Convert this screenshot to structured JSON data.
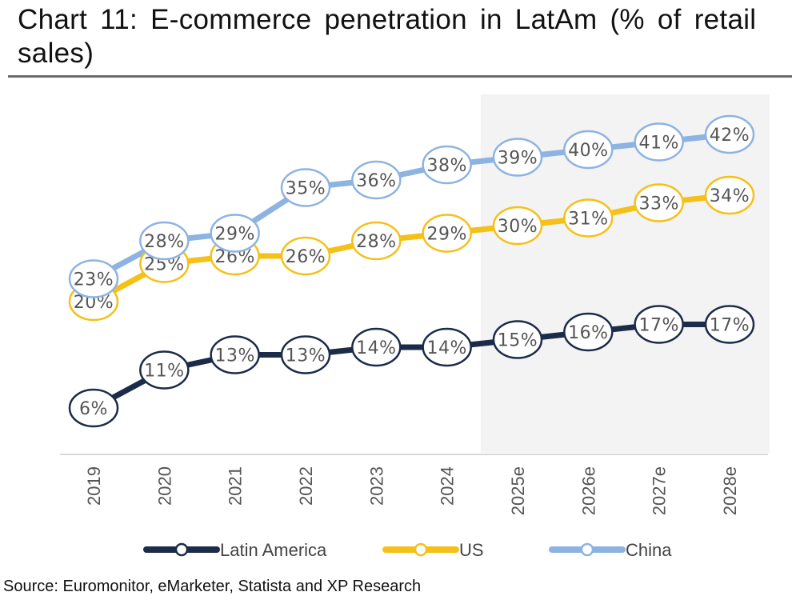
{
  "chart_data": {
    "type": "line",
    "title": "Chart 11: E-commerce penetration in LatAm (% of retail sales)",
    "xlabel": "",
    "ylabel": "",
    "categories": [
      "2019",
      "2020",
      "2021",
      "2022",
      "2023",
      "2024",
      "2025e",
      "2026e",
      "2027e",
      "2028e"
    ],
    "shaded_region": {
      "from": "2025e",
      "to": "2028e",
      "meaning": "estimates"
    },
    "ylim": [
      0,
      45
    ],
    "grid": false,
    "legend": "bottom-center",
    "series": [
      {
        "name": "Latin America",
        "color": "#1c2b48",
        "values": [
          6,
          11,
          13,
          13,
          14,
          14,
          15,
          16,
          17,
          17
        ],
        "labels": [
          "6%",
          "11%",
          "13%",
          "13%",
          "14%",
          "14%",
          "15%",
          "16%",
          "17%",
          "17%"
        ]
      },
      {
        "name": "US",
        "color": "#f5c018",
        "values": [
          20,
          25,
          26,
          26,
          28,
          29,
          30,
          31,
          33,
          34
        ],
        "labels": [
          "20%",
          "25%",
          "26%",
          "26%",
          "28%",
          "29%",
          "30%",
          "31%",
          "33%",
          "34%"
        ]
      },
      {
        "name": "China",
        "color": "#8db3e2",
        "values": [
          23,
          28,
          29,
          35,
          36,
          38,
          39,
          40,
          41,
          42
        ],
        "labels": [
          "23%",
          "28%",
          "29%",
          "35%",
          "36%",
          "38%",
          "39%",
          "40%",
          "41%",
          "42%"
        ]
      }
    ]
  },
  "source": "Source: Euromonitor, eMarketer, Statista and XP Research"
}
